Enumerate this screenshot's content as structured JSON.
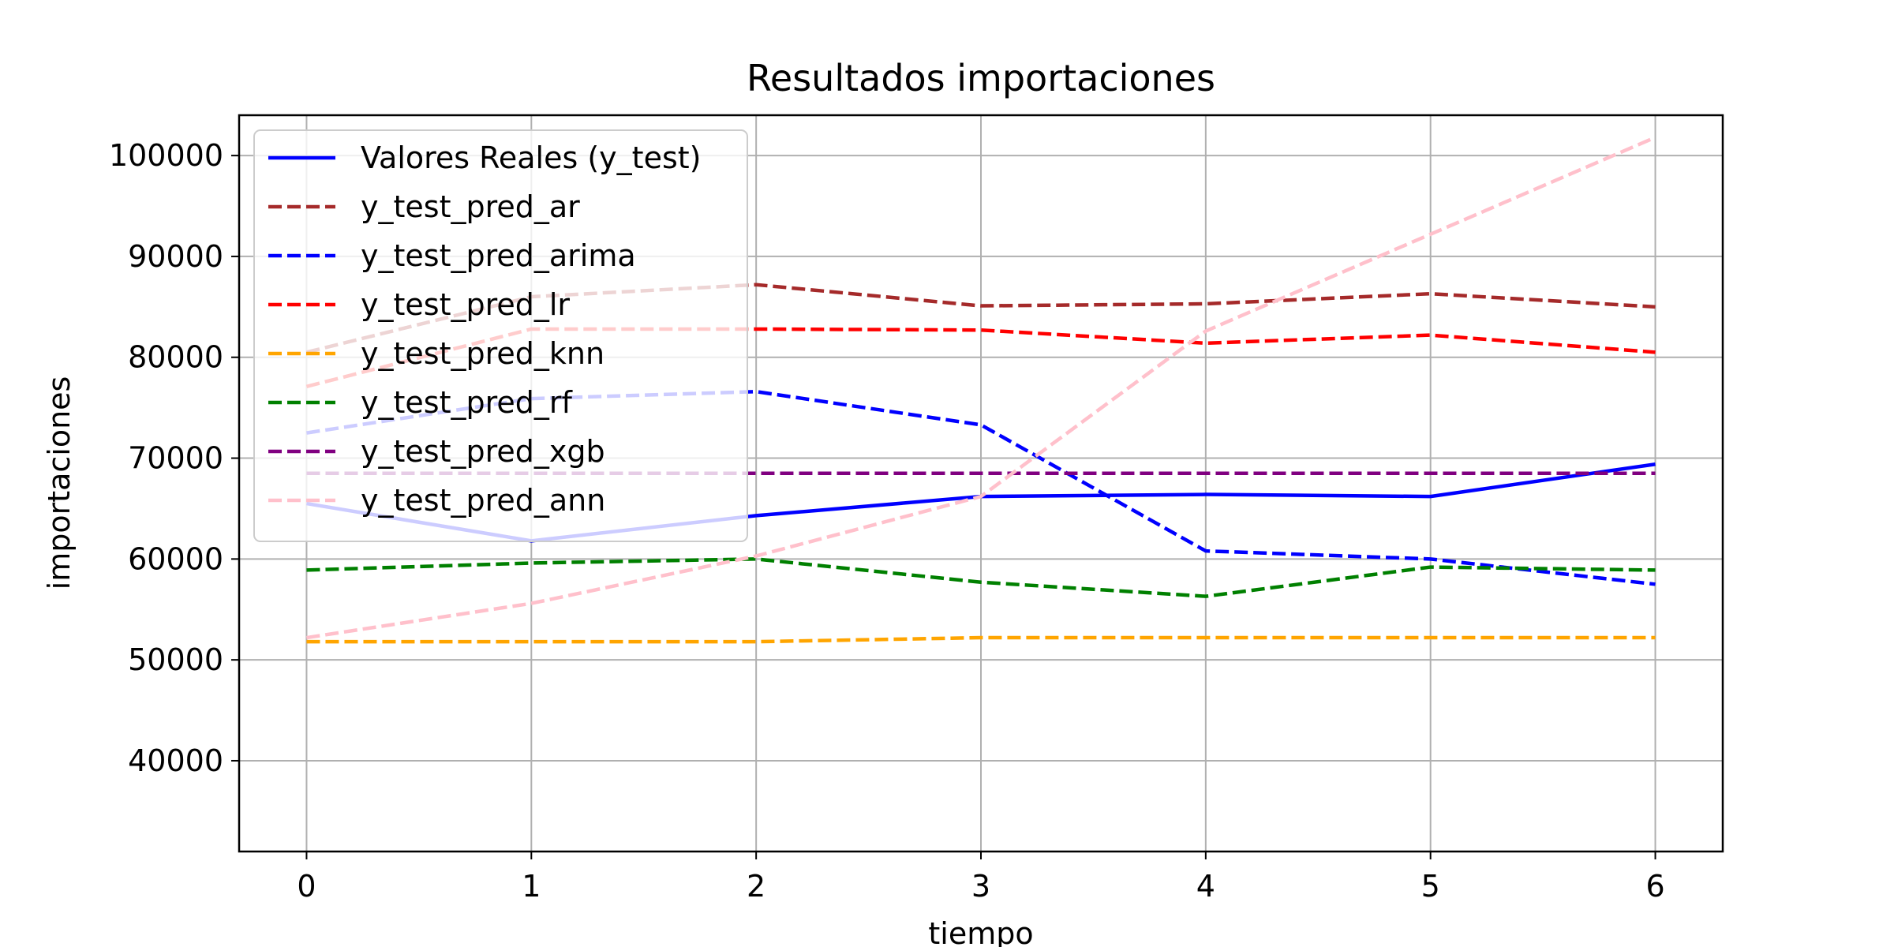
{
  "chart_data": {
    "type": "line",
    "title": "Resultados importaciones",
    "xlabel": "tiempo",
    "ylabel": "importaciones",
    "x": [
      0,
      1,
      2,
      3,
      4,
      5,
      6
    ],
    "xlim": [
      -0.3,
      6.3
    ],
    "ylim": [
      31000,
      104000
    ],
    "xticks": [
      0,
      1,
      2,
      3,
      4,
      5,
      6
    ],
    "yticks": [
      40000,
      50000,
      60000,
      70000,
      80000,
      90000,
      100000
    ],
    "grid": true,
    "legend_position": "upper-left",
    "series": [
      {
        "name": "Valores Reales (y_test)",
        "color": "#0000ff",
        "style": "solid",
        "values": [
          65500,
          61800,
          64300,
          66200,
          66400,
          66200,
          69400
        ]
      },
      {
        "name": "y_test_pred_ar",
        "color": "#a52a2a",
        "style": "dashed",
        "values": [
          80500,
          86000,
          87200,
          85100,
          85300,
          86300,
          85000
        ]
      },
      {
        "name": "y_test_pred_arima",
        "color": "#0000ff",
        "style": "dashed",
        "values": [
          72500,
          75900,
          76600,
          73300,
          60800,
          60000,
          57500
        ]
      },
      {
        "name": "y_test_pred_lr",
        "color": "#ff0000",
        "style": "dashed",
        "values": [
          77100,
          82800,
          82800,
          82700,
          81400,
          82200,
          80500
        ]
      },
      {
        "name": "y_test_pred_knn",
        "color": "#ffa500",
        "style": "dashed",
        "values": [
          51800,
          51800,
          51800,
          52200,
          52200,
          52200,
          52200
        ]
      },
      {
        "name": "y_test_pred_rf",
        "color": "#008000",
        "style": "dashed",
        "values": [
          58900,
          59600,
          60000,
          57700,
          56300,
          59200,
          58900
        ]
      },
      {
        "name": "y_test_pred_xgb",
        "color": "#800080",
        "style": "dashed",
        "values": [
          68500,
          68500,
          68500,
          68500,
          68500,
          68500,
          68500
        ]
      },
      {
        "name": "y_test_pred_ann",
        "color": "#ffc0cb",
        "style": "dashed",
        "values": [
          52200,
          55600,
          60300,
          66200,
          82600,
          92200,
          101800
        ]
      }
    ]
  }
}
